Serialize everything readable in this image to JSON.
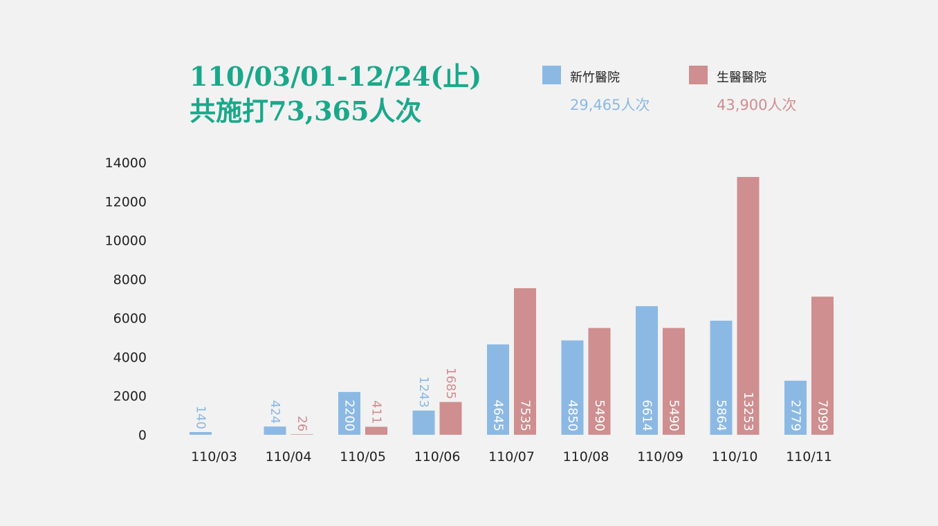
{
  "title": {
    "line1": "110/03/01-12/24(止)",
    "line2": "共施打73,365人次"
  },
  "legend": [
    {
      "name": "新竹醫院",
      "total": "29,465人次",
      "color": "#8bb9e4"
    },
    {
      "name": "生醫醫院",
      "total": "43,900人次",
      "color": "#cf8e8f"
    }
  ],
  "colors": {
    "title": "#1aa88a",
    "series1": "#8bb9e4",
    "series2": "#cf8e8f"
  },
  "chart_data": {
    "type": "bar",
    "categories": [
      "110/03",
      "110/04",
      "110/05",
      "110/06",
      "110/07",
      "110/08",
      "110/09",
      "110/10",
      "110/11"
    ],
    "series": [
      {
        "name": "新竹醫院",
        "values": [
          140,
          424,
          2200,
          1243,
          4645,
          4850,
          6614,
          5864,
          2779
        ]
      },
      {
        "name": "生醫醫院",
        "values": [
          null,
          26,
          411,
          1685,
          7535,
          5490,
          5490,
          13253,
          7099
        ]
      }
    ],
    "data_labels": [
      [
        "140",
        "424",
        "2200",
        "1243",
        "4645",
        "4850",
        "6614",
        "5864",
        "2779"
      ],
      [
        "",
        "26",
        "411",
        "1685",
        "7535",
        "5490",
        "5490",
        "13253",
        "7099"
      ]
    ],
    "y_ticks": [
      "0",
      "2000",
      "4000",
      "6000",
      "8000",
      "10000",
      "12000",
      "14000"
    ],
    "ylim": [
      0,
      14000
    ],
    "grid": false,
    "legend_position": "top-right"
  }
}
